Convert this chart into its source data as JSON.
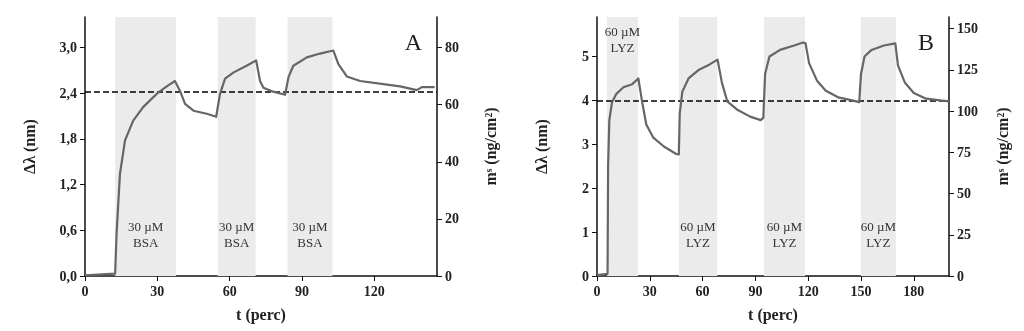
{
  "chart_data": [
    {
      "type": "line",
      "title": "A",
      "xlabel": "t (perc)",
      "ylabel": "Δλ (nm)",
      "y2label": "mˢ (ng/cm²)",
      "xlim": [
        0,
        146
      ],
      "xticks": [
        0,
        30,
        60,
        90,
        120
      ],
      "ylim": [
        0,
        3.4
      ],
      "yticks": [
        {
          "value": 0,
          "label": "0,0"
        },
        {
          "value": 0.6,
          "label": "0,6"
        },
        {
          "value": 1.2,
          "label": "1,2"
        },
        {
          "value": 1.8,
          "label": "1,8"
        },
        {
          "value": 2.4,
          "label": "2,4"
        },
        {
          "value": 3,
          "label": "3,0"
        }
      ],
      "y2lim": [
        0,
        90.7
      ],
      "y2ticks": [
        0,
        20,
        40,
        60,
        80
      ],
      "grid": false,
      "series": [
        {
          "color": "#666666",
          "x": [
            0,
            12.5,
            13.1,
            14.5,
            16.6,
            20,
            24.2,
            29.7,
            33.9,
            37.3,
            39.4,
            41.5,
            45,
            50.5,
            54.4,
            56,
            58.1,
            61.5,
            67,
            71,
            72.6,
            74,
            78.1,
            83,
            84.4,
            86.4,
            92,
            97.5,
            103,
            105.1,
            108.6,
            114.1,
            123.8,
            130.7,
            137.6,
            139.7,
            145
          ],
          "values": [
            0.01,
            0.03,
            0.56,
            1.34,
            1.78,
            2.04,
            2.22,
            2.39,
            2.49,
            2.56,
            2.43,
            2.26,
            2.17,
            2.13,
            2.09,
            2.39,
            2.59,
            2.67,
            2.76,
            2.83,
            2.56,
            2.47,
            2.42,
            2.38,
            2.61,
            2.76,
            2.87,
            2.92,
            2.96,
            2.78,
            2.62,
            2.56,
            2.52,
            2.49,
            2.44,
            2.48,
            2.48
          ]
        }
      ],
      "ref_lines": [
        {
          "axis": "y",
          "value": 2.42,
          "label": null,
          "color": "#000000",
          "line_style": "dashed"
        }
      ],
      "bands": [
        {
          "axis": "x",
          "from": 12.5,
          "to": 37.8,
          "label": "30 µM\nBSA",
          "color": "#ebebeb"
        },
        {
          "axis": "x",
          "from": 55,
          "to": 70.8,
          "label": "30 µM\nBSA",
          "color": "#ebebeb"
        },
        {
          "axis": "x",
          "from": 84,
          "to": 102.6,
          "label": "30 µM\nBSA",
          "color": "#ebebeb"
        }
      ]
    },
    {
      "type": "line",
      "title": "B",
      "xlabel": "t (perc)",
      "ylabel": "Δλ (nm)",
      "y2label": "mˢ (ng/cm²)",
      "xlim": [
        0,
        200
      ],
      "xticks": [
        0,
        30,
        60,
        90,
        120,
        150,
        180
      ],
      "ylim": [
        0,
        5.9
      ],
      "yticks": [
        0,
        1,
        2,
        3,
        4,
        5
      ],
      "y2lim": [
        0,
        157
      ],
      "y2ticks": [
        0,
        25,
        50,
        75,
        100,
        125,
        150
      ],
      "grid": false,
      "series": [
        {
          "color": "#666666",
          "x": [
            0,
            6,
            6.3,
            7,
            8.5,
            11,
            15,
            20,
            23.5,
            25.5,
            28,
            32,
            38,
            45,
            46.5,
            47,
            48.5,
            52,
            58,
            64,
            68.5,
            71,
            74,
            80,
            87,
            93,
            94.5,
            95.5,
            98,
            104,
            112,
            117,
            118.5,
            120.5,
            125,
            130,
            137,
            145,
            149,
            150,
            152,
            156,
            163,
            169.5,
            171,
            175,
            180,
            187,
            195,
            200
          ],
          "values": [
            0.02,
            0.05,
            2.5,
            3.55,
            3.95,
            4.15,
            4.3,
            4.37,
            4.5,
            4.0,
            3.45,
            3.15,
            2.95,
            2.78,
            2.77,
            3.7,
            4.2,
            4.5,
            4.7,
            4.82,
            4.93,
            4.4,
            3.98,
            3.78,
            3.63,
            3.55,
            3.6,
            4.6,
            5.0,
            5.15,
            5.25,
            5.32,
            5.3,
            4.85,
            4.45,
            4.22,
            4.07,
            4.0,
            3.96,
            4.6,
            5.0,
            5.15,
            5.25,
            5.3,
            4.8,
            4.4,
            4.17,
            4.04,
            4.0,
            3.98
          ]
        }
      ],
      "ref_lines": [
        {
          "axis": "y",
          "value": 4,
          "label": null,
          "color": "#000000",
          "line_style": "dashed"
        }
      ],
      "bands": [
        {
          "axis": "x",
          "from": 5.7,
          "to": 23.3,
          "label": "60 µM\nLYZ",
          "color": "#ebebeb"
        },
        {
          "axis": "x",
          "from": 46.5,
          "to": 68.3,
          "label": "60 µM\nLYZ",
          "color": "#ebebeb"
        },
        {
          "axis": "x",
          "from": 94.9,
          "to": 118.2,
          "label": "60 µM\nLYZ",
          "color": "#ebebeb"
        },
        {
          "axis": "x",
          "from": 149.9,
          "to": 169.8,
          "label": "60 µM\nLYZ",
          "color": "#ebebeb"
        }
      ]
    }
  ]
}
